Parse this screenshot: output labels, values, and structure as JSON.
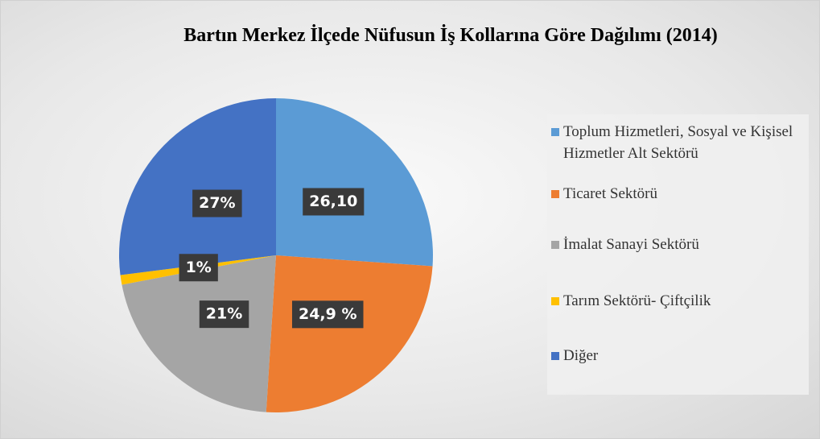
{
  "chart_data": {
    "type": "pie",
    "title": "Bartın Merkez İlçede Nüfusun İş Kollarına Göre Dağılımı (2014)",
    "categories": [
      "Toplum Hizmetleri, Sosyal ve Kişisel Hizmetler Alt Sektörü",
      "Ticaret Sektörü",
      "İmalat Sanayi Sektörü",
      "Tarım Sektörü- Çiftçilik",
      "Diğer"
    ],
    "values": [
      26.1,
      24.9,
      21,
      1,
      27
    ],
    "value_labels": [
      "26,10",
      "24,9 %",
      "21%",
      "1%",
      "27%"
    ],
    "colors": [
      "#5b9bd5",
      "#ed7d31",
      "#a5a5a5",
      "#ffc000",
      "#4472c4"
    ],
    "legend": "right"
  }
}
